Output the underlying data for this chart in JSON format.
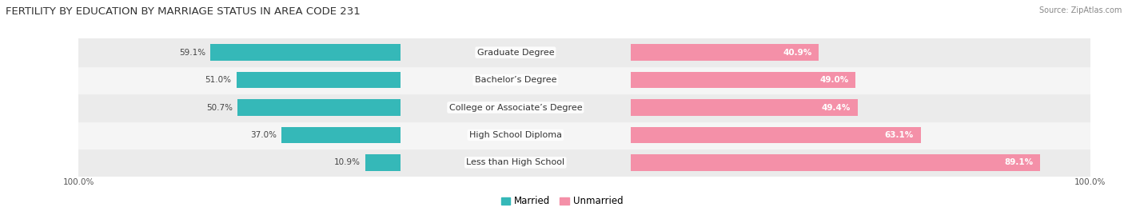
{
  "title": "FERTILITY BY EDUCATION BY MARRIAGE STATUS IN AREA CODE 231",
  "source": "Source: ZipAtlas.com",
  "categories": [
    "Less than High School",
    "High School Diploma",
    "College or Associate’s Degree",
    "Bachelor’s Degree",
    "Graduate Degree"
  ],
  "married": [
    10.9,
    37.0,
    50.7,
    51.0,
    59.1
  ],
  "unmarried": [
    89.1,
    63.1,
    49.4,
    49.0,
    40.9
  ],
  "married_color": "#35b8b8",
  "unmarried_color": "#f490a8",
  "row_bg_odd": "#ebebeb",
  "row_bg_even": "#f5f5f5",
  "background_color": "#ffffff",
  "title_fontsize": 9.5,
  "label_fontsize": 8.0,
  "value_fontsize": 7.5,
  "tick_fontsize": 7.5,
  "legend_fontsize": 8.5,
  "bar_height": 0.6
}
